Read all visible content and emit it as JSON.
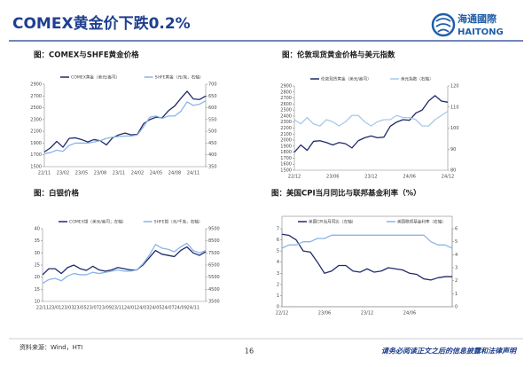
{
  "header": {
    "title": "COMEX黄金价下跌0.2%",
    "logo_cn": "海通國際",
    "logo_en": "HAITONG"
  },
  "chart_data": [
    {
      "type": "line",
      "title": "图：COMEX与SHFE黄金价格",
      "categories": [
        "22/11",
        null,
        null,
        "23/02",
        null,
        null,
        "23/05",
        null,
        null,
        "23/08",
        null,
        null,
        "23/11",
        null,
        null,
        "24/02",
        null,
        null,
        "24/05",
        null,
        null,
        "24/08",
        null,
        null,
        "24/11",
        null,
        null
      ],
      "series": [
        {
          "name": "COMEX黄金（美元/盎司）",
          "color": "#1f2a6b",
          "values": [
            1750,
            1820,
            1930,
            1830,
            1980,
            1990,
            1960,
            1920,
            1960,
            1940,
            1870,
            1990,
            2040,
            2070,
            2040,
            2050,
            2230,
            2300,
            2340,
            2330,
            2450,
            2530,
            2660,
            2780,
            2650,
            2640,
            2700
          ]
        },
        {
          "name": "SHFE黄金（元/克，右轴）",
          "color": "#8ab4e6",
          "axis": "y2",
          "values": [
            405,
            410,
            420,
            415,
            440,
            450,
            450,
            450,
            455,
            460,
            470,
            475,
            478,
            480,
            480,
            485,
            520,
            560,
            565,
            555,
            565,
            565,
            585,
            625,
            610,
            615,
            630
          ]
        }
      ],
      "ylim": [
        1500,
        2900
      ],
      "yticks": [
        1500,
        1700,
        1900,
        2100,
        2300,
        2500,
        2700,
        2900
      ],
      "y2lim": [
        350,
        700
      ],
      "y2ticks": [
        350,
        400,
        450,
        500,
        550,
        600,
        650,
        700
      ]
    },
    {
      "type": "line",
      "title": "图：伦敦现货黄金价格与美元指数",
      "categories": [
        "22/12",
        null,
        null,
        null,
        null,
        null,
        "23/06",
        null,
        null,
        null,
        null,
        null,
        "23/12",
        null,
        null,
        null,
        null,
        null,
        "24/06",
        null,
        null,
        null,
        null,
        null,
        "24/12"
      ],
      "series": [
        {
          "name": "伦敦现货黄金（美元/盎司）",
          "color": "#1f2a6b",
          "values": [
            1800,
            1920,
            1830,
            1980,
            1990,
            1960,
            1920,
            1960,
            1940,
            1870,
            1990,
            2040,
            2070,
            2040,
            2050,
            2230,
            2300,
            2340,
            2330,
            2450,
            2500,
            2650,
            2740,
            2650,
            2630
          ]
        },
        {
          "name": "美元指数（右轴）",
          "color": "#a9c8ec",
          "axis": "y2",
          "values": [
            104,
            102,
            105,
            102,
            101,
            104,
            103,
            101,
            103,
            106,
            106,
            103,
            101,
            103,
            104,
            104,
            106,
            105,
            105,
            104,
            101,
            101,
            104,
            106,
            108
          ]
        }
      ],
      "ylim": [
        1500,
        2900
      ],
      "yticks": [
        1500,
        1600,
        1700,
        1800,
        1900,
        2000,
        2100,
        2200,
        2300,
        2400,
        2500,
        2600,
        2700,
        2800,
        2900
      ],
      "y2lim": [
        80,
        120
      ],
      "y2ticks": [
        80,
        90,
        100,
        110,
        120
      ]
    },
    {
      "type": "line",
      "title": "图：白银价格",
      "categories": [
        "22/11",
        null,
        "23/01",
        null,
        "23/03",
        null,
        "23/05",
        null,
        "23/07",
        null,
        "23/09",
        null,
        "23/11",
        null,
        "24/01",
        null,
        "24/03",
        null,
        "24/05",
        null,
        "24/07",
        null,
        "24/09",
        null,
        "24/11",
        null,
        null
      ],
      "series": [
        {
          "name": "COMEX银（美元/盎司；左轴）",
          "color": "#1f2a6b",
          "values": [
            21,
            23.5,
            23.5,
            21.5,
            24,
            25,
            23.5,
            22.8,
            24.5,
            23,
            22.5,
            23,
            24,
            23.5,
            23,
            23,
            25,
            28,
            31,
            29.5,
            29,
            28.5,
            31,
            32.5,
            30,
            29,
            30.5
          ]
        },
        {
          "name": "SHFE银（元/千克，右轴）",
          "color": "#8ab4e6",
          "axis": "y2",
          "values": [
            5000,
            5300,
            5400,
            5200,
            5600,
            5800,
            5700,
            5700,
            5900,
            5800,
            5900,
            6000,
            6100,
            6000,
            6000,
            6100,
            6600,
            7300,
            8200,
            7900,
            7800,
            7600,
            8000,
            8300,
            7700,
            7500,
            7700
          ]
        }
      ],
      "ylim": [
        10,
        40
      ],
      "yticks": [
        10,
        15,
        20,
        25,
        30,
        35,
        40
      ],
      "y2lim": [
        3500,
        9500
      ],
      "y2ticks": [
        3500,
        4500,
        5500,
        6500,
        7500,
        8500,
        9500
      ]
    },
    {
      "type": "line",
      "title": "图：美国CPI当月同比与联邦基金利率（%）",
      "categories": [
        "22/12",
        null,
        null,
        null,
        null,
        null,
        "23/06",
        null,
        null,
        null,
        null,
        null,
        "23/12",
        null,
        null,
        null,
        null,
        null,
        "24/06",
        null,
        null,
        null,
        null,
        null,
        null
      ],
      "series": [
        {
          "name": "美国CPI当月同比（左轴）",
          "color": "#1f2a6b",
          "values": [
            6.5,
            6.4,
            6.0,
            5.0,
            4.9,
            4.0,
            3.0,
            3.2,
            3.7,
            3.7,
            3.2,
            3.1,
            3.4,
            3.1,
            3.2,
            3.5,
            3.4,
            3.3,
            3.0,
            2.9,
            2.5,
            2.4,
            2.6,
            2.7,
            2.7
          ]
        },
        {
          "name": "美国联邦基金利率（右轴）",
          "color": "#8ab4e6",
          "axis": "y2",
          "values": [
            4.5,
            4.75,
            4.75,
            5.0,
            5.0,
            5.25,
            5.25,
            5.5,
            5.5,
            5.5,
            5.5,
            5.5,
            5.5,
            5.5,
            5.5,
            5.5,
            5.5,
            5.5,
            5.5,
            5.5,
            5.5,
            5.0,
            4.75,
            4.75,
            4.5
          ]
        }
      ],
      "ylim": [
        0,
        7
      ],
      "yticks": [
        0,
        1,
        2,
        3,
        4,
        5,
        6,
        7
      ],
      "y2lim": [
        0,
        6
      ],
      "y2ticks": [
        0,
        1,
        2,
        3,
        4,
        5,
        6
      ]
    }
  ],
  "footer": {
    "source": "资料来源：Wind，HTI",
    "page": "16",
    "disclaimer": "请务必阅读正文之后的信息披露和法律声明"
  }
}
